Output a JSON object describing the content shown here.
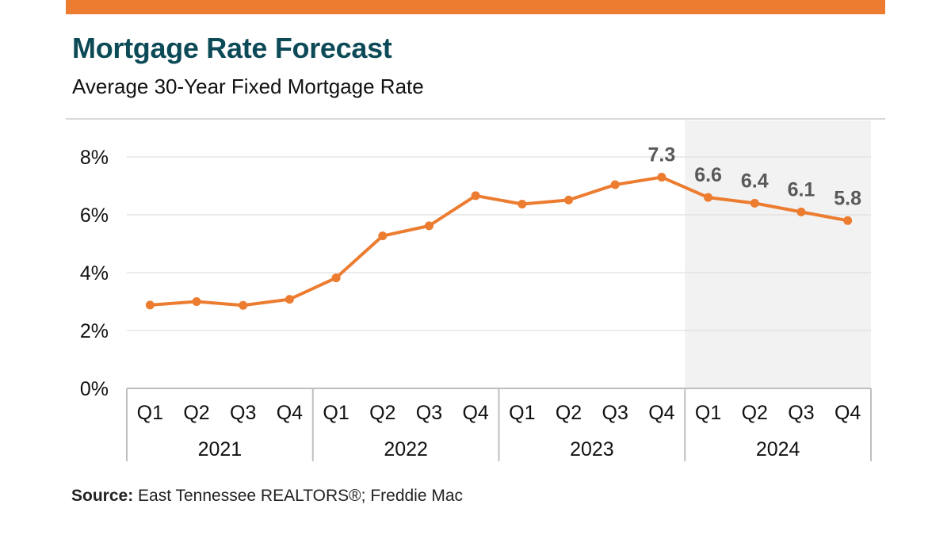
{
  "header": {
    "title": "Mortgage Rate Forecast",
    "subtitle": "Average 30-Year Fixed Mortgage Rate"
  },
  "footer": {
    "source_label": "Source:",
    "source_text": "East Tennessee REALTORS®; Freddie Mac"
  },
  "colors": {
    "accent": "#ec7c30",
    "title": "#0d4a57",
    "forecast_shade": "#f2f2f2",
    "data_label": "#595959"
  },
  "chart_data": {
    "type": "line",
    "title": "Mortgage Rate Forecast",
    "subtitle": "Average 30-Year Fixed Mortgage Rate",
    "xlabel": "",
    "ylabel": "",
    "ylim": [
      0,
      8
    ],
    "yticks": [
      0,
      2,
      4,
      6,
      8
    ],
    "ytick_labels": [
      "0%",
      "2%",
      "4%",
      "6%",
      "8%"
    ],
    "grid": true,
    "legend": "none",
    "groups": [
      {
        "label": "2021",
        "categories": [
          "Q1",
          "Q2",
          "Q3",
          "Q4"
        ]
      },
      {
        "label": "2022",
        "categories": [
          "Q1",
          "Q2",
          "Q3",
          "Q4"
        ]
      },
      {
        "label": "2023",
        "categories": [
          "Q1",
          "Q2",
          "Q3",
          "Q4"
        ]
      },
      {
        "label": "2024",
        "categories": [
          "Q1",
          "Q2",
          "Q3",
          "Q4"
        ]
      }
    ],
    "forecast_group": "2024",
    "series": [
      {
        "name": "Average 30-Year Fixed Mortgage Rate",
        "color": "#ec7c30",
        "values": [
          2.88,
          3.0,
          2.87,
          3.08,
          3.82,
          5.27,
          5.62,
          6.66,
          6.37,
          6.51,
          7.04,
          7.3,
          6.6,
          6.4,
          6.1,
          5.8
        ]
      }
    ],
    "data_labels": [
      {
        "index": 11,
        "text": "7.3"
      },
      {
        "index": 12,
        "text": "6.6"
      },
      {
        "index": 13,
        "text": "6.4"
      },
      {
        "index": 14,
        "text": "6.1"
      },
      {
        "index": 15,
        "text": "5.8"
      }
    ]
  }
}
